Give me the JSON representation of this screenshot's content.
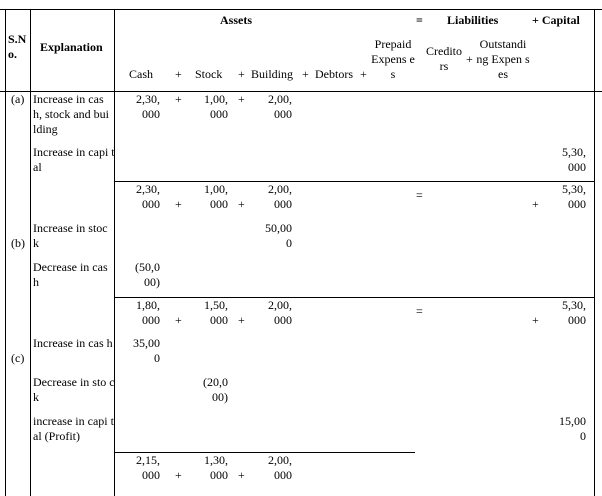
{
  "header": {
    "sno": "S.N o.",
    "explanation": "Explanation",
    "assets": "Assets",
    "eq": "=",
    "liabilities": "Liabilities",
    "plus_capital": "+ Capital",
    "cash": "Cash",
    "stock": "Stock",
    "building": "Building",
    "debtors": "Debtors",
    "prepaid": "Prepaid Expens es",
    "creditors": "Credito rs",
    "outstanding": "Outstandi ng Expen ses",
    "plus": "+"
  },
  "a": {
    "label": "(a)",
    "expl1": "Increase in cas h, stock and bui lding",
    "cash1": "2,30, 000",
    "stock1": "1,00, 000",
    "bldg1": "2,00, 000",
    "expl2": "Increase in capi tal",
    "cap2": "5,30, 000",
    "tot_cash": "2,30, 000",
    "tot_stock": "1,00, 000",
    "tot_bldg": "2,00, 000",
    "tot_cap": "5,30, 000"
  },
  "b": {
    "label": "(b)",
    "expl1": "Increase in stoc k",
    "bldg1": "50,00 0",
    "expl2": "Decrease in cas h",
    "cash2": "(50,0 00)",
    "tot_cash": "1,80, 000",
    "tot_stock": "1,50, 000",
    "tot_bldg": "2,00, 000",
    "tot_cap": "5,30, 000"
  },
  "c": {
    "label": "(c)",
    "expl1": "Increase in cas h",
    "cash1": "35,00 0",
    "expl2": "Decrease in sto ck",
    "stock2": "(20,0 00)",
    "expl3": "increase in capi tal (Profit)",
    "cap3": "15,00 0",
    "tot_cash": "2,15, 000",
    "tot_stock": "1,30, 000",
    "tot_bldg": "2,00, 000"
  }
}
